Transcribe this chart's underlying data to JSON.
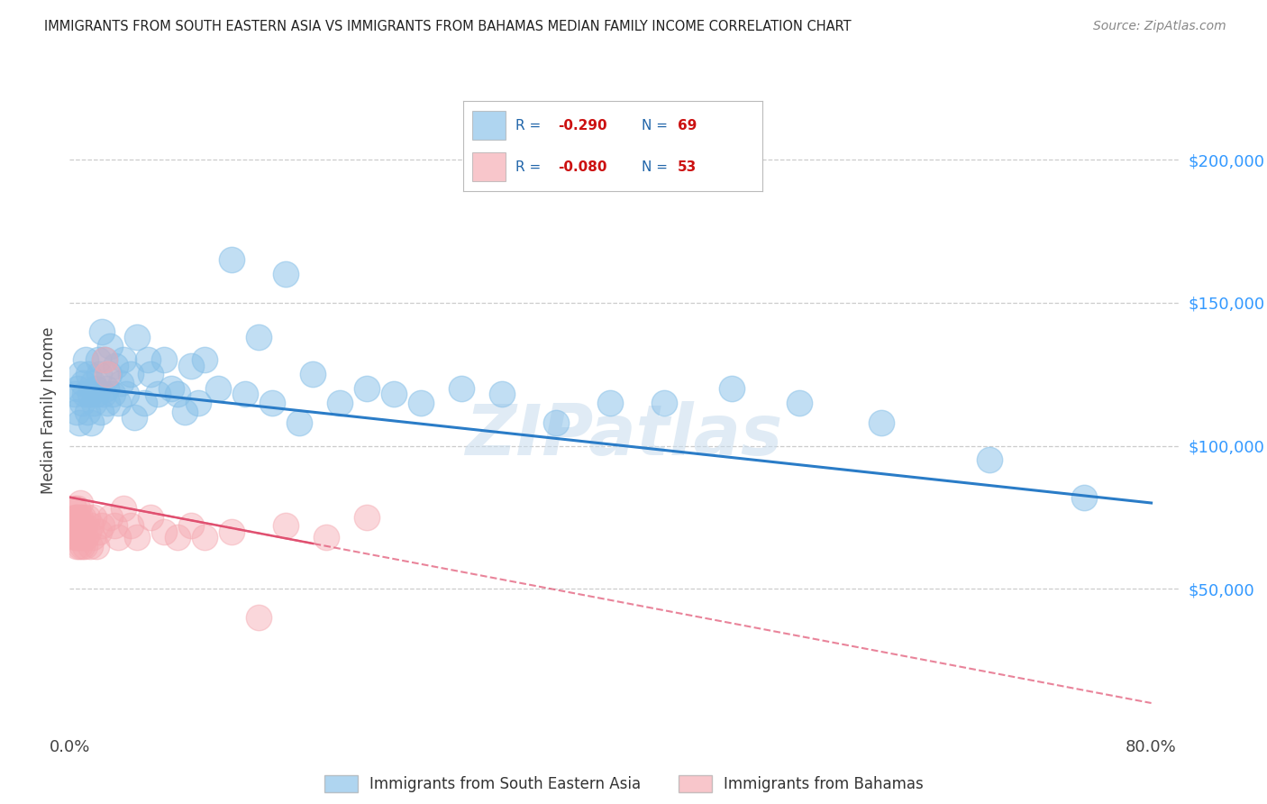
{
  "title": "IMMIGRANTS FROM SOUTH EASTERN ASIA VS IMMIGRANTS FROM BAHAMAS MEDIAN FAMILY INCOME CORRELATION CHART",
  "source": "Source: ZipAtlas.com",
  "ylabel": "Median Family Income",
  "ytick_labels": [
    "$50,000",
    "$100,000",
    "$150,000",
    "$200,000"
  ],
  "ytick_values": [
    50000,
    100000,
    150000,
    200000
  ],
  "ylim": [
    0,
    225000
  ],
  "xlim": [
    0.0,
    0.82
  ],
  "xtick_left": "0.0%",
  "xtick_right": "80.0%",
  "legend1_r": "-0.290",
  "legend1_n": "69",
  "legend2_r": "-0.080",
  "legend2_n": "53",
  "blue_color": "#85bfe8",
  "pink_color": "#f5a8b0",
  "blue_line_color": "#2a7cc7",
  "pink_line_color": "#e05070",
  "watermark": "ZIPatlas",
  "legend_label1": "Immigrants from South Eastern Asia",
  "legend_label2": "Immigrants from Bahamas",
  "blue_scatter_x": [
    0.004,
    0.005,
    0.006,
    0.007,
    0.008,
    0.009,
    0.01,
    0.011,
    0.012,
    0.013,
    0.014,
    0.015,
    0.016,
    0.017,
    0.018,
    0.019,
    0.02,
    0.021,
    0.022,
    0.023,
    0.024,
    0.025,
    0.026,
    0.027,
    0.028,
    0.029,
    0.03,
    0.032,
    0.034,
    0.036,
    0.038,
    0.04,
    0.042,
    0.045,
    0.048,
    0.05,
    0.055,
    0.058,
    0.06,
    0.065,
    0.07,
    0.075,
    0.08,
    0.085,
    0.09,
    0.095,
    0.1,
    0.11,
    0.12,
    0.13,
    0.14,
    0.15,
    0.16,
    0.17,
    0.18,
    0.2,
    0.22,
    0.24,
    0.26,
    0.29,
    0.32,
    0.36,
    0.4,
    0.44,
    0.49,
    0.54,
    0.6,
    0.68,
    0.75
  ],
  "blue_scatter_y": [
    118000,
    112000,
    120000,
    108000,
    125000,
    115000,
    122000,
    118000,
    130000,
    112000,
    125000,
    118000,
    108000,
    122000,
    115000,
    120000,
    118000,
    130000,
    125000,
    112000,
    140000,
    118000,
    130000,
    120000,
    115000,
    125000,
    135000,
    118000,
    128000,
    115000,
    122000,
    130000,
    118000,
    125000,
    110000,
    138000,
    115000,
    130000,
    125000,
    118000,
    130000,
    120000,
    118000,
    112000,
    128000,
    115000,
    130000,
    120000,
    165000,
    118000,
    138000,
    115000,
    160000,
    108000,
    125000,
    115000,
    120000,
    118000,
    115000,
    120000,
    118000,
    108000,
    115000,
    115000,
    120000,
    115000,
    108000,
    95000,
    82000
  ],
  "pink_scatter_x": [
    0.003,
    0.003,
    0.004,
    0.004,
    0.004,
    0.005,
    0.005,
    0.005,
    0.005,
    0.006,
    0.006,
    0.006,
    0.006,
    0.007,
    0.007,
    0.007,
    0.008,
    0.008,
    0.008,
    0.009,
    0.009,
    0.01,
    0.01,
    0.011,
    0.011,
    0.012,
    0.013,
    0.014,
    0.015,
    0.016,
    0.017,
    0.018,
    0.02,
    0.022,
    0.024,
    0.026,
    0.028,
    0.03,
    0.033,
    0.036,
    0.04,
    0.045,
    0.05,
    0.06,
    0.07,
    0.08,
    0.09,
    0.1,
    0.12,
    0.14,
    0.16,
    0.19,
    0.22
  ],
  "pink_scatter_y": [
    78000,
    72000,
    68000,
    75000,
    72000,
    65000,
    70000,
    75000,
    68000,
    72000,
    78000,
    68000,
    75000,
    65000,
    70000,
    72000,
    68000,
    75000,
    80000,
    65000,
    72000,
    68000,
    75000,
    72000,
    65000,
    68000,
    75000,
    70000,
    65000,
    72000,
    68000,
    75000,
    65000,
    70000,
    72000,
    130000,
    125000,
    75000,
    72000,
    68000,
    78000,
    72000,
    68000,
    75000,
    70000,
    68000,
    72000,
    68000,
    70000,
    40000,
    72000,
    68000,
    75000
  ]
}
